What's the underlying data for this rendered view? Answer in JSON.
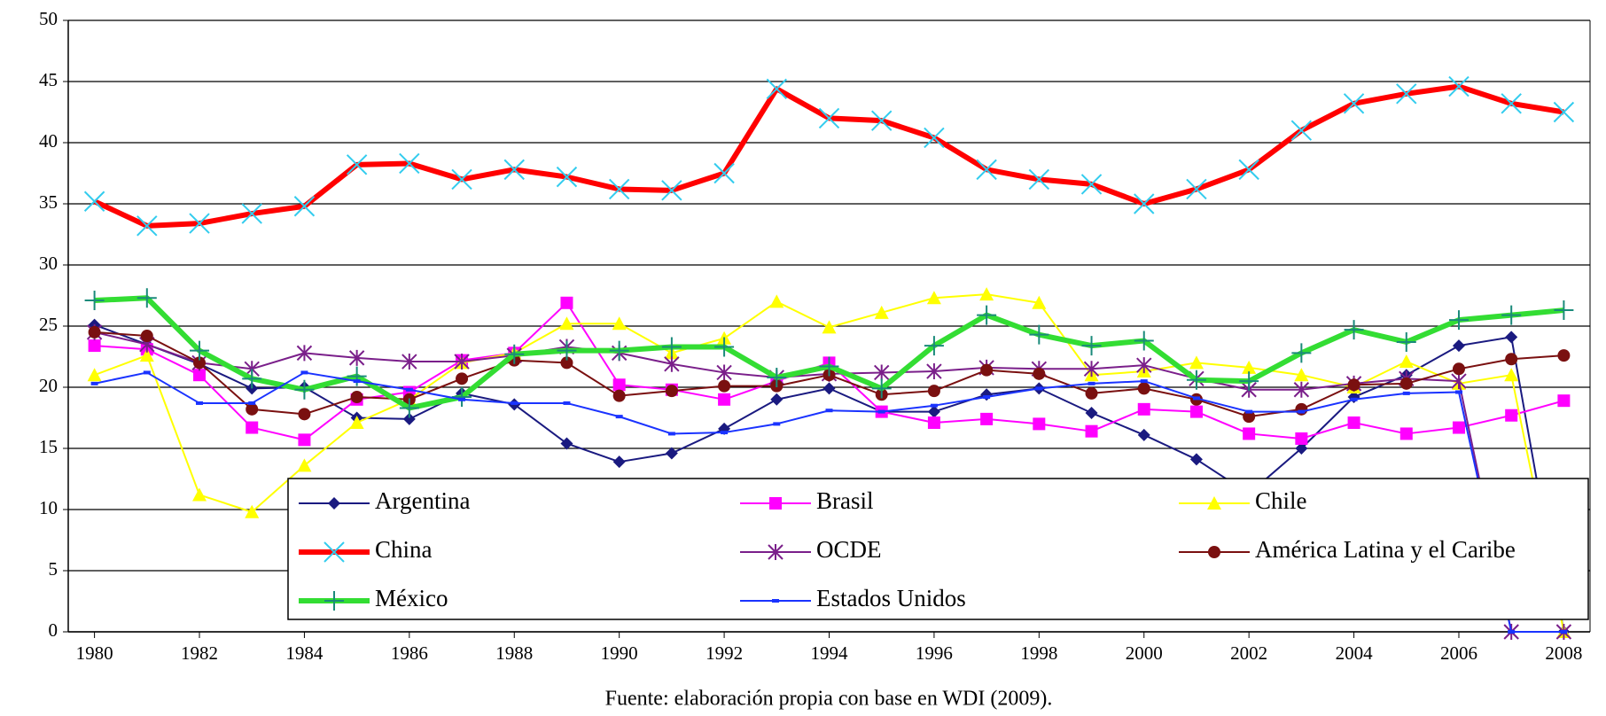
{
  "chart_data": {
    "type": "line",
    "caption": "Fuente: elaboración propia con base en WDI (2009).",
    "x": [
      1980,
      1981,
      1982,
      1983,
      1984,
      1985,
      1986,
      1987,
      1988,
      1989,
      1990,
      1991,
      1992,
      1993,
      1994,
      1995,
      1996,
      1997,
      1998,
      1999,
      2000,
      2001,
      2002,
      2003,
      2004,
      2005,
      2006,
      2007,
      2008
    ],
    "xlim": [
      1979.5,
      2008.5
    ],
    "xticks": [
      1980,
      1982,
      1984,
      1986,
      1988,
      1990,
      1992,
      1994,
      1996,
      1998,
      2000,
      2002,
      2004,
      2006,
      2008
    ],
    "ylim": [
      0,
      50
    ],
    "yticks": [
      0,
      5,
      10,
      15,
      20,
      25,
      30,
      35,
      40,
      45,
      50
    ],
    "grid": true,
    "legend": "bottom-right",
    "series": [
      {
        "name": "Argentina",
        "color": "#1a1a80",
        "marker": "diamond",
        "values": [
          25.1,
          23.5,
          21.9,
          19.9,
          20.0,
          17.5,
          17.4,
          19.5,
          18.6,
          15.4,
          13.9,
          14.6,
          16.6,
          19.0,
          19.9,
          18.0,
          18.0,
          19.4,
          19.9,
          17.9,
          16.1,
          14.1,
          11.3,
          15.0,
          19.2,
          21.0,
          23.4,
          24.1,
          0
        ]
      },
      {
        "name": "Brasil",
        "color": "#ff00ff",
        "marker": "square",
        "values": [
          23.4,
          23.1,
          21.0,
          16.7,
          15.7,
          19.0,
          19.6,
          22.2,
          22.8,
          26.9,
          20.2,
          19.8,
          19.0,
          20.5,
          22.0,
          18.0,
          17.1,
          17.4,
          17.0,
          16.4,
          18.2,
          18.0,
          16.2,
          15.8,
          17.1,
          16.2,
          16.7,
          17.7,
          18.9
        ]
      },
      {
        "name": "Chile",
        "color": "#ffff00",
        "marker": "triangle",
        "values": [
          21.0,
          22.6,
          11.2,
          9.8,
          13.6,
          17.1,
          19.0,
          22.0,
          22.8,
          25.2,
          25.2,
          22.8,
          24.0,
          27.0,
          24.9,
          26.1,
          27.3,
          27.6,
          26.9,
          21.0,
          21.3,
          22.0,
          21.6,
          21.0,
          20.0,
          22.1,
          20.3,
          21.0,
          0
        ]
      },
      {
        "name": "China",
        "color": "#ff0000",
        "marker_color": "#33ccee",
        "marker": "x",
        "width": 6,
        "values": [
          35.2,
          33.2,
          33.4,
          34.2,
          34.8,
          38.2,
          38.3,
          37.0,
          37.8,
          37.2,
          36.2,
          36.1,
          37.5,
          44.4,
          42.0,
          41.8,
          40.4,
          37.8,
          37.0,
          36.6,
          35.0,
          36.2,
          37.8,
          41.0,
          43.2,
          44.0,
          44.6,
          43.2,
          42.5
        ]
      },
      {
        "name": "OCDE",
        "color": "#7a1f8a",
        "marker": "star",
        "values": [
          24.5,
          23.5,
          22.0,
          21.5,
          22.8,
          22.4,
          22.1,
          22.1,
          22.6,
          23.3,
          22.8,
          21.9,
          21.2,
          20.8,
          21.1,
          21.2,
          21.3,
          21.6,
          21.5,
          21.5,
          21.8,
          20.7,
          19.8,
          19.8,
          20.3,
          20.7,
          20.5,
          0,
          0
        ]
      },
      {
        "name": "América Latina y el Caribe",
        "color": "#7a1010",
        "marker": "circle",
        "values": [
          24.5,
          24.2,
          22.0,
          18.2,
          17.8,
          19.2,
          19.0,
          20.7,
          22.2,
          22.0,
          19.3,
          19.7,
          20.1,
          20.1,
          21.0,
          19.4,
          19.7,
          21.4,
          21.1,
          19.5,
          19.9,
          19.0,
          17.6,
          18.2,
          20.2,
          20.3,
          21.5,
          22.3,
          22.6
        ]
      },
      {
        "name": "México",
        "color": "#33dd33",
        "marker_color": "#1a8a7a",
        "marker": "plus",
        "width": 6,
        "values": [
          27.1,
          27.3,
          23.0,
          20.7,
          19.8,
          20.9,
          18.3,
          19.2,
          22.7,
          23.0,
          23.0,
          23.3,
          23.3,
          20.8,
          21.7,
          19.9,
          23.4,
          25.9,
          24.3,
          23.4,
          23.8,
          20.6,
          20.5,
          22.8,
          24.7,
          23.7,
          25.5,
          25.9,
          26.3
        ]
      },
      {
        "name": "Estados Unidos",
        "color": "#1a33ff",
        "marker": "dash",
        "values": [
          20.3,
          21.2,
          18.7,
          18.7,
          21.2,
          20.5,
          19.8,
          19.0,
          18.7,
          18.7,
          17.6,
          16.2,
          16.3,
          17.0,
          18.1,
          18.0,
          18.5,
          19.2,
          19.9,
          20.3,
          20.5,
          19.1,
          18.0,
          18.0,
          19.0,
          19.5,
          19.6,
          0,
          0
        ]
      }
    ]
  }
}
